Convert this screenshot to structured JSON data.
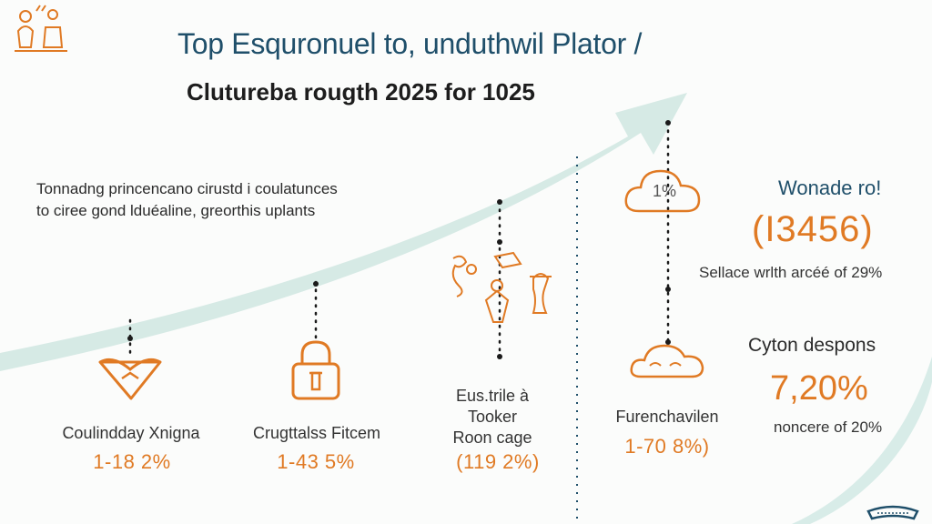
{
  "title": "Top Esquronuel to, unduthwil Plator /",
  "subtitle": "Clutureba rougth 2025 for 1025",
  "intro": {
    "line1": "Tonnadng princencano cirustd i coulatunces",
    "line2": "to ciree gond lduéaline, greorthis uplants"
  },
  "items": [
    {
      "label": "Coulindday Xnigna",
      "value": "1-18 2%",
      "icon": "heart-icon"
    },
    {
      "label": "Crugttalss Fitcem",
      "value": "1-43 5%",
      "icon": "lock-icon"
    },
    {
      "label_lines": [
        "Eus.trile à",
        "Tooker",
        "Roon cage"
      ],
      "value": "(119 2%)",
      "icon": "people-sketch-icon"
    },
    {
      "label": "Furenchavilen",
      "value": "1-70 8%)",
      "icon": "cloud-icon"
    }
  ],
  "cloud_badge": "1%",
  "right_panel": {
    "heading": "Wonade ro!",
    "big_value": "(I3456)",
    "caption": "Sellace wrlth arcéé of 29%",
    "heading2": "Cyton despons",
    "percent": "7,20%",
    "caption2": "noncere of 20%"
  },
  "colors": {
    "accent": "#e07a24",
    "title": "#1f4f6a",
    "arrow": "#cfe6e1"
  }
}
